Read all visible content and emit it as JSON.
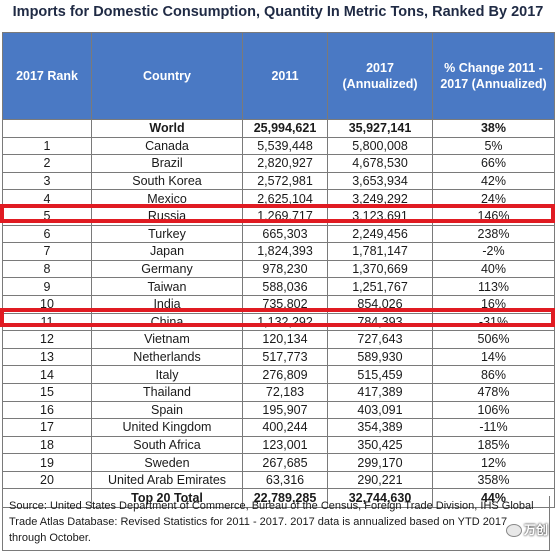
{
  "title": "Imports for Domestic Consumption, Quantity In Metric Tons, Ranked By 2017",
  "headers": {
    "rank": "2017 Rank",
    "country": "Country",
    "y2011": "2011",
    "y2017": "2017 (Annualized)",
    "change": "% Change 2011 - 2017 (Annualized)"
  },
  "world": {
    "rank": "",
    "country": "World",
    "y2011": "25,994,621",
    "y2017": "35,927,141",
    "change": "38%"
  },
  "rows": [
    {
      "rank": "1",
      "country": "Canada",
      "y2011": "5,539,448",
      "y2017": "5,800,008",
      "change": "5%"
    },
    {
      "rank": "2",
      "country": "Brazil",
      "y2011": "2,820,927",
      "y2017": "4,678,530",
      "change": "66%"
    },
    {
      "rank": "3",
      "country": "South Korea",
      "y2011": "2,572,981",
      "y2017": "3,653,934",
      "change": "42%"
    },
    {
      "rank": "4",
      "country": "Mexico",
      "y2011": "2,625,104",
      "y2017": "3,249,292",
      "change": "24%"
    },
    {
      "rank": "5",
      "country": "Russia",
      "y2011": "1,269,717",
      "y2017": "3,123,691",
      "change": "146%"
    },
    {
      "rank": "6",
      "country": "Turkey",
      "y2011": "665,303",
      "y2017": "2,249,456",
      "change": "238%"
    },
    {
      "rank": "7",
      "country": "Japan",
      "y2011": "1,824,393",
      "y2017": "1,781,147",
      "change": "-2%"
    },
    {
      "rank": "8",
      "country": "Germany",
      "y2011": "978,230",
      "y2017": "1,370,669",
      "change": "40%"
    },
    {
      "rank": "9",
      "country": "Taiwan",
      "y2011": "588,036",
      "y2017": "1,251,767",
      "change": "113%"
    },
    {
      "rank": "10",
      "country": "India",
      "y2011": "735,802",
      "y2017": "854,026",
      "change": "16%"
    },
    {
      "rank": "11",
      "country": "China",
      "y2011": "1,132,292",
      "y2017": "784,393",
      "change": "-31%"
    },
    {
      "rank": "12",
      "country": "Vietnam",
      "y2011": "120,134",
      "y2017": "727,643",
      "change": "506%"
    },
    {
      "rank": "13",
      "country": "Netherlands",
      "y2011": "517,773",
      "y2017": "589,930",
      "change": "14%"
    },
    {
      "rank": "14",
      "country": "Italy",
      "y2011": "276,809",
      "y2017": "515,459",
      "change": "86%"
    },
    {
      "rank": "15",
      "country": "Thailand",
      "y2011": "72,183",
      "y2017": "417,389",
      "change": "478%"
    },
    {
      "rank": "16",
      "country": "Spain",
      "y2011": "195,907",
      "y2017": "403,091",
      "change": "106%"
    },
    {
      "rank": "17",
      "country": "United Kingdom",
      "y2011": "400,244",
      "y2017": "354,389",
      "change": "-11%"
    },
    {
      "rank": "18",
      "country": "South Africa",
      "y2011": "123,001",
      "y2017": "350,425",
      "change": "185%"
    },
    {
      "rank": "19",
      "country": "Sweden",
      "y2011": "267,685",
      "y2017": "299,170",
      "change": "12%"
    },
    {
      "rank": "20",
      "country": "United Arab Emirates",
      "y2011": "63,316",
      "y2017": "290,221",
      "change": "358%"
    }
  ],
  "total": {
    "rank": "",
    "country": "Top 20 Total",
    "y2011": "22,789,285",
    "y2017": "32,744,630",
    "change": "44%"
  },
  "source": "Source: United States Department of Commerce, Bureau of the Census, Foreign Trade Division, IHS Global Trade Atlas Database: Revised Statistics for 2011 - 2017. 2017 data is annualized based on YTD 2017 through October.",
  "watermark": "万创",
  "colors": {
    "header_bg": "#4a79c4",
    "highlight": "#e01b22"
  }
}
